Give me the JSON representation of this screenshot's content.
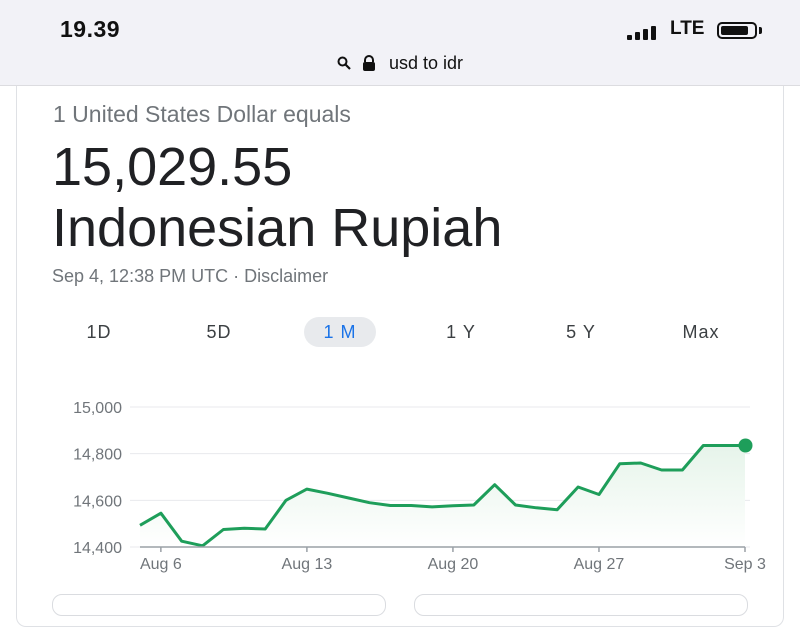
{
  "status_bar": {
    "time": "19.39",
    "network": "LTE",
    "icons": [
      "signal-bars-icon",
      "battery-icon"
    ]
  },
  "address_bar": {
    "query": "usd to idr",
    "icons": [
      "search-icon",
      "lock-icon"
    ]
  },
  "converter": {
    "from_text": "1 United States Dollar equals",
    "amount": "15,029.55",
    "to_currency": "Indonesian Rupiah",
    "timestamp": "Sep 4, 12:38 PM UTC",
    "separator": "·",
    "disclaimer_link": "Disclaimer"
  },
  "range_tabs": [
    {
      "label": "1D",
      "active": false
    },
    {
      "label": "5D",
      "active": false
    },
    {
      "label": "1 M",
      "active": true
    },
    {
      "label": "1 Y",
      "active": false
    },
    {
      "label": "5 Y",
      "active": false
    },
    {
      "label": "Max",
      "active": false
    }
  ],
  "colors": {
    "line": "#1e9e5a",
    "area": "#e6f4ea",
    "active_tab_text": "#1a73e8",
    "active_tab_bg": "#e8eaed",
    "grid": "#e8eaed",
    "axis_text": "#70757a"
  },
  "chart_data": {
    "type": "area",
    "title": "",
    "xlabel": "",
    "ylabel": "",
    "ylim": [
      14400,
      15000
    ],
    "y_ticks": [
      14400,
      14600,
      14800,
      15000
    ],
    "y_tick_labels": [
      "14,400",
      "14,600",
      "14,800",
      "15,000"
    ],
    "x_tick_labels": [
      {
        "label": "Aug 6",
        "day": 6
      },
      {
        "label": "Aug 13",
        "day": 13
      },
      {
        "label": "Aug 20",
        "day": 20
      },
      {
        "label": "Aug 27",
        "day": 27
      },
      {
        "label": "Sep 3",
        "day": 34
      }
    ],
    "series": [
      {
        "days": [
          5,
          6,
          7,
          8,
          9,
          10,
          11,
          12,
          13,
          14,
          15,
          16,
          17,
          18,
          19,
          20,
          21,
          22,
          23,
          24,
          25,
          26,
          27,
          28,
          29,
          30,
          31,
          32,
          33,
          34
        ],
        "values": [
          14493,
          14545,
          14425,
          14405,
          14475,
          14480,
          14477,
          14600,
          14648,
          14630,
          14610,
          14590,
          14578,
          14578,
          14572,
          14577,
          14580,
          14667,
          14580,
          14568,
          14560,
          14657,
          14625,
          14757,
          14760,
          14730,
          14730,
          14835,
          14835,
          14835
        ]
      }
    ],
    "grid": true,
    "end_marker": true
  }
}
